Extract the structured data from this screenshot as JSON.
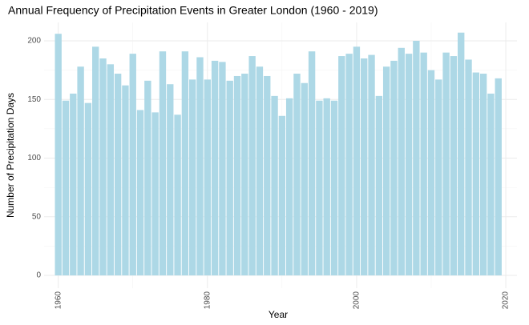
{
  "chart_data": {
    "type": "bar",
    "title": "Annual Frequency of Precipitation Events in Greater London (1960 - 2019)",
    "x_label": "Year",
    "y_label": "Number of Precipitation Days",
    "x": [
      1960,
      1961,
      1962,
      1963,
      1964,
      1965,
      1966,
      1967,
      1968,
      1969,
      1970,
      1971,
      1972,
      1973,
      1974,
      1975,
      1976,
      1977,
      1978,
      1979,
      1980,
      1981,
      1982,
      1983,
      1984,
      1985,
      1986,
      1987,
      1988,
      1989,
      1990,
      1991,
      1992,
      1993,
      1994,
      1995,
      1996,
      1997,
      1998,
      1999,
      2000,
      2001,
      2002,
      2003,
      2004,
      2005,
      2006,
      2007,
      2008,
      2009,
      2010,
      2011,
      2012,
      2013,
      2014,
      2015,
      2016,
      2017,
      2018,
      2019
    ],
    "values": [
      206,
      149,
      155,
      178,
      147,
      195,
      185,
      180,
      172,
      162,
      189,
      141,
      166,
      139,
      191,
      163,
      137,
      191,
      167,
      186,
      167,
      183,
      182,
      166,
      170,
      172,
      187,
      178,
      170,
      153,
      136,
      151,
      172,
      164,
      191,
      149,
      151,
      149,
      187,
      189,
      195,
      185,
      188,
      153,
      178,
      183,
      194,
      189,
      200,
      190,
      175,
      167,
      190,
      187,
      207,
      184,
      173,
      172,
      155,
      168
    ],
    "color": "#add8e6",
    "xlim": [
      1958.1,
      2021.5
    ],
    "ylim": [
      -10.9,
      215.7
    ],
    "xticks": [
      1960,
      1980,
      2000,
      2020
    ],
    "yticks": [
      0,
      50,
      100,
      150,
      200
    ],
    "x_minor_ticks": [
      1970,
      1990,
      2010
    ],
    "y_minor_ticks": [
      25,
      75,
      125,
      175
    ],
    "grid": true
  }
}
